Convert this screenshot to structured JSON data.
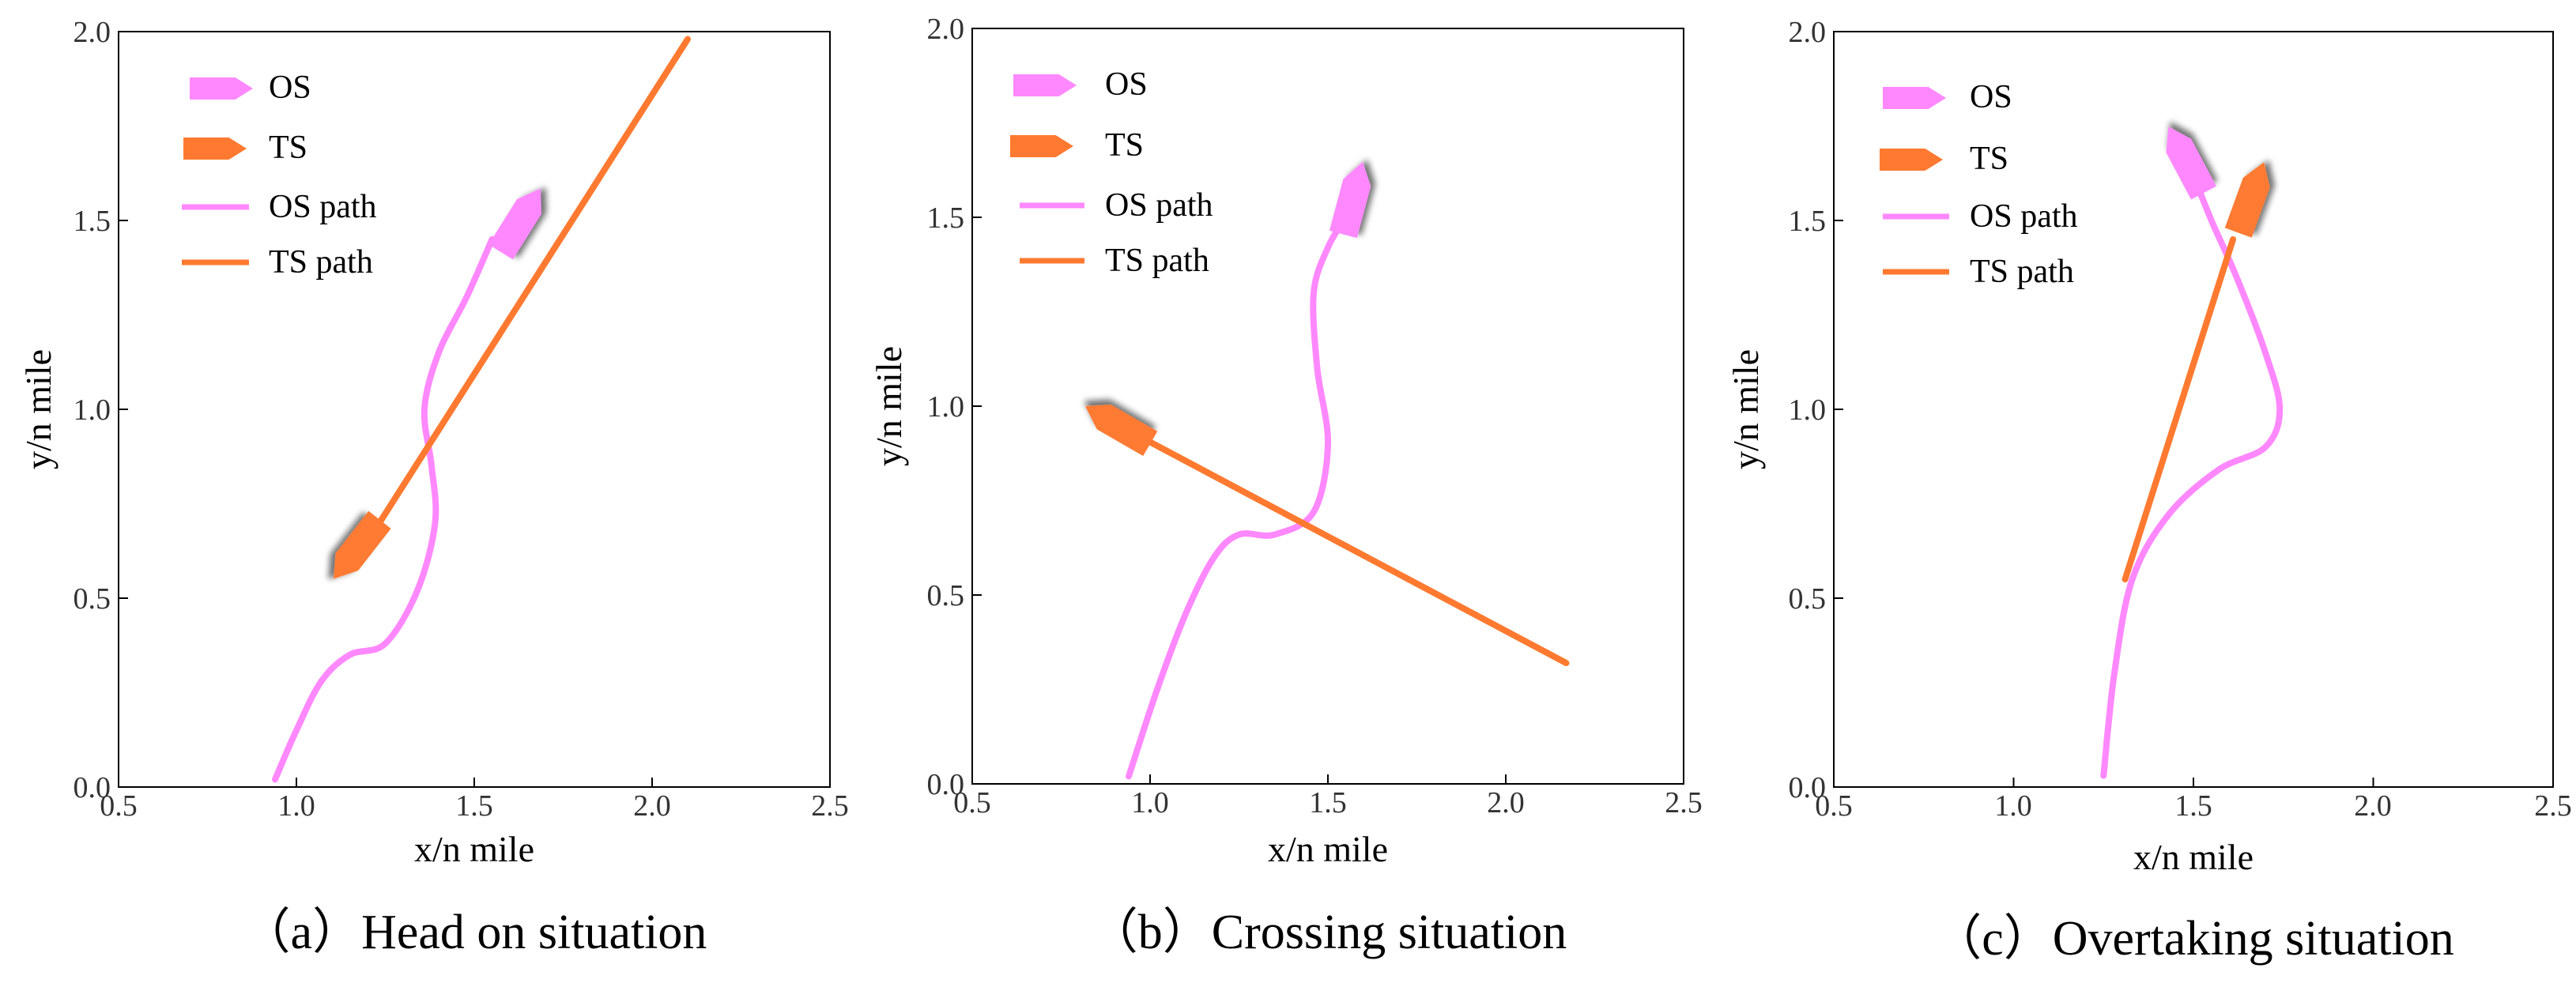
{
  "colors": {
    "os": "#ff88ff",
    "ts": "#ff7a30",
    "axis": "#000000",
    "text": "#000000"
  },
  "chart_data": [
    {
      "type": "line",
      "caption": "（a）Head on situation",
      "xlabel": "x/n mile",
      "ylabel": "y/n mile",
      "xlim": [
        0.5,
        2.5
      ],
      "ylim": [
        0.0,
        2.0
      ],
      "xticks": [
        "0.5",
        "1.0",
        "1.5",
        "2.0",
        "2.5"
      ],
      "yticks": [
        "0.0",
        "0.5",
        "1.0",
        "1.5",
        "2.0"
      ],
      "legend": [
        "OS",
        "TS",
        "OS path",
        "TS path"
      ],
      "series": [
        {
          "name": "OS path",
          "x": [
            0.94,
            1.0,
            1.07,
            1.15,
            1.25,
            1.34,
            1.39,
            1.38,
            1.36,
            1.4,
            1.48,
            1.55
          ],
          "y": [
            0.02,
            0.15,
            0.28,
            0.35,
            0.38,
            0.52,
            0.7,
            0.85,
            1.0,
            1.15,
            1.3,
            1.45
          ]
        },
        {
          "name": "TS path",
          "x": [
            1.2,
            2.1
          ],
          "y": [
            0.65,
            1.98
          ]
        }
      ],
      "os_ship": {
        "x": 1.63,
        "y": 1.5,
        "heading_deg": 58
      },
      "ts_ship": {
        "x": 1.17,
        "y": 0.63,
        "heading_deg": 232
      }
    },
    {
      "type": "line",
      "caption": "（b）Crossing situation",
      "xlabel": "x/n mile",
      "ylabel": "y/n mile",
      "xlim": [
        0.5,
        2.5
      ],
      "ylim": [
        0.0,
        2.0
      ],
      "xticks": [
        "0.5",
        "1.0",
        "1.5",
        "2.0",
        "2.5"
      ],
      "yticks": [
        "0.0",
        "0.5",
        "1.0",
        "1.5",
        "2.0"
      ],
      "legend": [
        "OS",
        "TS",
        "OS path",
        "TS path"
      ],
      "series": [
        {
          "name": "OS path",
          "x": [
            0.94,
            1.02,
            1.1,
            1.18,
            1.25,
            1.35,
            1.46,
            1.5,
            1.47,
            1.46,
            1.5,
            1.55
          ],
          "y": [
            0.02,
            0.25,
            0.45,
            0.6,
            0.66,
            0.66,
            0.72,
            0.9,
            1.1,
            1.3,
            1.42,
            1.5
          ]
        },
        {
          "name": "TS path",
          "x": [
            0.95,
            2.17
          ],
          "y": [
            0.93,
            0.32
          ]
        }
      ],
      "os_ship": {
        "x": 1.57,
        "y": 1.55,
        "heading_deg": 75
      },
      "ts_ship": {
        "x": 0.91,
        "y": 0.95,
        "heading_deg": 150
      }
    },
    {
      "type": "line",
      "caption": "（c）Overtaking situation",
      "xlabel": "x/n mile",
      "ylabel": "y/n mile",
      "xlim": [
        0.5,
        2.5
      ],
      "ylim": [
        0.0,
        2.0
      ],
      "xticks": [
        "0.5",
        "1.0",
        "1.5",
        "2.0",
        "2.5"
      ],
      "yticks": [
        "0.0",
        "0.5",
        "1.0",
        "1.5",
        "2.0"
      ],
      "legend": [
        "OS",
        "TS",
        "OS path",
        "TS path"
      ],
      "series": [
        {
          "name": "OS path",
          "x": [
            1.25,
            1.28,
            1.33,
            1.43,
            1.57,
            1.7,
            1.74,
            1.7,
            1.62,
            1.55,
            1.5
          ],
          "y": [
            0.03,
            0.3,
            0.55,
            0.72,
            0.84,
            0.9,
            1.0,
            1.15,
            1.35,
            1.5,
            1.62
          ]
        },
        {
          "name": "TS path",
          "x": [
            1.31,
            1.61
          ],
          "y": [
            0.55,
            1.45
          ]
        }
      ],
      "os_ship": {
        "x": 1.48,
        "y": 1.66,
        "heading_deg": 118
      },
      "ts_ship": {
        "x": 1.66,
        "y": 1.56,
        "heading_deg": 70
      }
    }
  ]
}
